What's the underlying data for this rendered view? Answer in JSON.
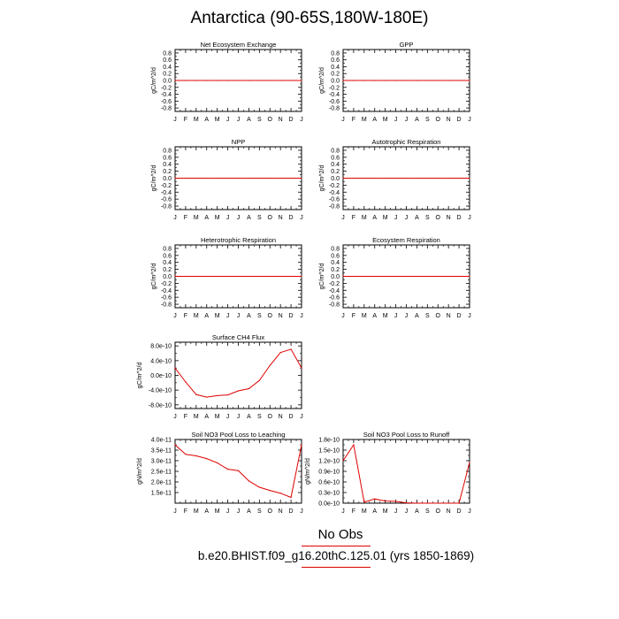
{
  "title": "Antarctica (90-65S,180W-180E)",
  "legend_label": "No Obs",
  "case_label": "b.e20.BHIST.f09_g16.20thC.125.01 (yrs 1850-1869)",
  "line_color": "#e00000",
  "chart_data": [
    {
      "type": "line",
      "title": "Net Ecosystem Exchange",
      "ylabel": "gC/m^2/d",
      "categories": [
        "J",
        "F",
        "M",
        "A",
        "M",
        "J",
        "J",
        "A",
        "S",
        "O",
        "N",
        "D",
        "J"
      ],
      "ylim": [
        -0.9,
        0.9
      ],
      "yticks": [
        -0.8,
        -0.6,
        -0.4,
        -0.2,
        0.0,
        0.2,
        0.4,
        0.6,
        0.8
      ],
      "ytick_labels": [
        "-0.8",
        "-0.6",
        "-0.4",
        "-0.2",
        "0.0",
        "0.2",
        "0.4",
        "0.6",
        "0.8"
      ],
      "values": [
        0,
        0,
        0,
        0,
        0,
        0,
        0,
        0,
        0,
        0,
        0,
        0,
        0
      ]
    },
    {
      "type": "line",
      "title": "GPP",
      "ylabel": "gC/m^2/d",
      "categories": [
        "J",
        "F",
        "M",
        "A",
        "M",
        "J",
        "J",
        "A",
        "S",
        "O",
        "N",
        "D",
        "J"
      ],
      "ylim": [
        -0.9,
        0.9
      ],
      "yticks": [
        -0.8,
        -0.6,
        -0.4,
        -0.2,
        0.0,
        0.2,
        0.4,
        0.6,
        0.8
      ],
      "ytick_labels": [
        "-0.8",
        "-0.6",
        "-0.4",
        "-0.2",
        "0.0",
        "0.2",
        "0.4",
        "0.6",
        "0.8"
      ],
      "values": [
        0,
        0,
        0,
        0,
        0,
        0,
        0,
        0,
        0,
        0,
        0,
        0,
        0
      ]
    },
    {
      "type": "line",
      "title": "NPP",
      "ylabel": "gC/m^2/d",
      "categories": [
        "J",
        "F",
        "M",
        "A",
        "M",
        "J",
        "J",
        "A",
        "S",
        "O",
        "N",
        "D",
        "J"
      ],
      "ylim": [
        -0.9,
        0.9
      ],
      "yticks": [
        -0.8,
        -0.6,
        -0.4,
        -0.2,
        0.0,
        0.2,
        0.4,
        0.6,
        0.8
      ],
      "ytick_labels": [
        "-0.8",
        "-0.6",
        "-0.4",
        "-0.2",
        "0.0",
        "0.2",
        "0.4",
        "0.6",
        "0.8"
      ],
      "values": [
        0,
        0,
        0,
        0,
        0,
        0,
        0,
        0,
        0,
        0,
        0,
        0,
        0
      ]
    },
    {
      "type": "line",
      "title": "Autotrophic Respiration",
      "ylabel": "gC/m^2/d",
      "categories": [
        "J",
        "F",
        "M",
        "A",
        "M",
        "J",
        "J",
        "A",
        "S",
        "O",
        "N",
        "D",
        "J"
      ],
      "ylim": [
        -0.9,
        0.9
      ],
      "yticks": [
        -0.8,
        -0.6,
        -0.4,
        -0.2,
        0.0,
        0.2,
        0.4,
        0.6,
        0.8
      ],
      "ytick_labels": [
        "-0.8",
        "-0.6",
        "-0.4",
        "-0.2",
        "0.0",
        "0.2",
        "0.4",
        "0.6",
        "0.8"
      ],
      "values": [
        0,
        0,
        0,
        0,
        0,
        0,
        0,
        0,
        0,
        0,
        0,
        0,
        0
      ]
    },
    {
      "type": "line",
      "title": "Heterotrophic Respiration",
      "ylabel": "gC/m^2/d",
      "categories": [
        "J",
        "F",
        "M",
        "A",
        "M",
        "J",
        "J",
        "A",
        "S",
        "O",
        "N",
        "D",
        "J"
      ],
      "ylim": [
        -0.9,
        0.9
      ],
      "yticks": [
        -0.8,
        -0.6,
        -0.4,
        -0.2,
        0.0,
        0.2,
        0.4,
        0.6,
        0.8
      ],
      "ytick_labels": [
        "-0.8",
        "-0.6",
        "-0.4",
        "-0.2",
        "0.0",
        "0.2",
        "0.4",
        "0.6",
        "0.8"
      ],
      "values": [
        0,
        0,
        0,
        0,
        0,
        0,
        0,
        0,
        0,
        0,
        0,
        0,
        0
      ]
    },
    {
      "type": "line",
      "title": "Ecosystem Respiration",
      "ylabel": "gC/m^2/d",
      "categories": [
        "J",
        "F",
        "M",
        "A",
        "M",
        "J",
        "J",
        "A",
        "S",
        "O",
        "N",
        "D",
        "J"
      ],
      "ylim": [
        -0.9,
        0.9
      ],
      "yticks": [
        -0.8,
        -0.6,
        -0.4,
        -0.2,
        0.0,
        0.2,
        0.4,
        0.6,
        0.8
      ],
      "ytick_labels": [
        "-0.8",
        "-0.6",
        "-0.4",
        "-0.2",
        "0.0",
        "0.2",
        "0.4",
        "0.6",
        "0.8"
      ],
      "values": [
        0,
        0,
        0,
        0,
        0,
        0,
        0,
        0,
        0,
        0,
        0,
        0,
        0
      ]
    },
    {
      "type": "line",
      "title": "Surface CH4 Flux",
      "ylabel": "gC/m^2/d",
      "categories": [
        "J",
        "F",
        "M",
        "A",
        "M",
        "J",
        "J",
        "A",
        "S",
        "O",
        "N",
        "D",
        "J"
      ],
      "ylim": [
        -9e-10,
        9e-10
      ],
      "yticks": [
        -8e-10,
        -4e-10,
        0,
        4e-10,
        8e-10
      ],
      "ytick_labels": [
        "-8.0e-10",
        "-4.0e-10",
        "0.0e-10",
        "4.0e-10",
        "8.0e-10"
      ],
      "values": [
        2e-10,
        -1.8e-10,
        -5.2e-10,
        -5.9e-10,
        -5.5e-10,
        -5.3e-10,
        -4.2e-10,
        -3.6e-10,
        -1.4e-10,
        2.7e-10,
        6.2e-10,
        7.1e-10,
        2e-10
      ]
    },
    {
      "type": "line",
      "title": "Soil NO3 Pool Loss to Leaching",
      "ylabel": "gN/m^2/d",
      "categories": [
        "J",
        "F",
        "M",
        "A",
        "M",
        "J",
        "J",
        "A",
        "S",
        "O",
        "N",
        "D",
        "J"
      ],
      "ylim": [
        1e-11,
        4e-11
      ],
      "yticks": [
        1.5e-11,
        2e-11,
        2.5e-11,
        3e-11,
        3.5e-11,
        4e-11
      ],
      "ytick_labels": [
        "1.5e-11",
        "2.0e-11",
        "2.5e-11",
        "3.0e-11",
        "3.5e-11",
        "4.0e-11"
      ],
      "values": [
        3.75e-11,
        3.3e-11,
        3.23e-11,
        3.1e-11,
        2.9e-11,
        2.6e-11,
        2.53e-11,
        2.05e-11,
        1.75e-11,
        1.6e-11,
        1.47e-11,
        1.27e-11,
        3.75e-11
      ]
    },
    {
      "type": "line",
      "title": "Soil NO3 Pool Loss to Runoff",
      "ylabel": "gN/m^2/d",
      "categories": [
        "J",
        "F",
        "M",
        "A",
        "M",
        "J",
        "J",
        "A",
        "S",
        "O",
        "N",
        "D",
        "J"
      ],
      "ylim": [
        0,
        1.8e-10
      ],
      "yticks": [
        0,
        3e-11,
        6e-11,
        9e-11,
        1.2e-10,
        1.5e-10,
        1.8e-10
      ],
      "ytick_labels": [
        "0.0e-10",
        "0.3e-10",
        "0.6e-10",
        "0.9e-10",
        "1.2e-10",
        "1.5e-10",
        "1.8e-10"
      ],
      "values": [
        1.2e-10,
        1.65e-10,
        3e-12,
        1.2e-11,
        6e-12,
        5e-12,
        1e-12,
        0,
        0,
        0,
        0,
        0,
        1.15e-10
      ]
    }
  ]
}
